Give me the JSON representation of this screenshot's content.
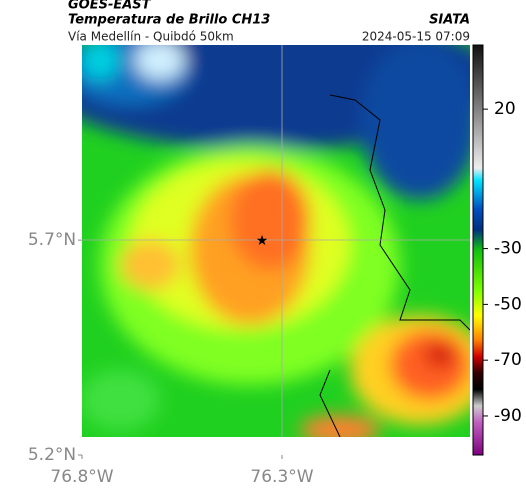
{
  "header": {
    "title": "GOES-EAST",
    "subtitle": "Temperatura de Brillo CH13",
    "source": "SIATA",
    "route": "Vía Medellín - Quibdó 50km",
    "timestamp": "2024-05-15 07:09"
  },
  "map": {
    "xlim": [
      -76.8,
      -75.83
    ],
    "ylim": [
      5.2,
      6.154
    ],
    "xticks": [
      {
        "value": -76.8,
        "label": "76.8°W"
      },
      {
        "value": -76.3,
        "label": "76.3°W"
      }
    ],
    "yticks": [
      {
        "value": 5.7,
        "label": "5.7°N"
      },
      {
        "value": 5.2,
        "label": "5.2°N"
      }
    ]
  },
  "colorbar": {
    "lim": [
      -104,
      43
    ],
    "ticks": [
      20,
      -30,
      -50,
      -70,
      -90
    ]
  }
}
